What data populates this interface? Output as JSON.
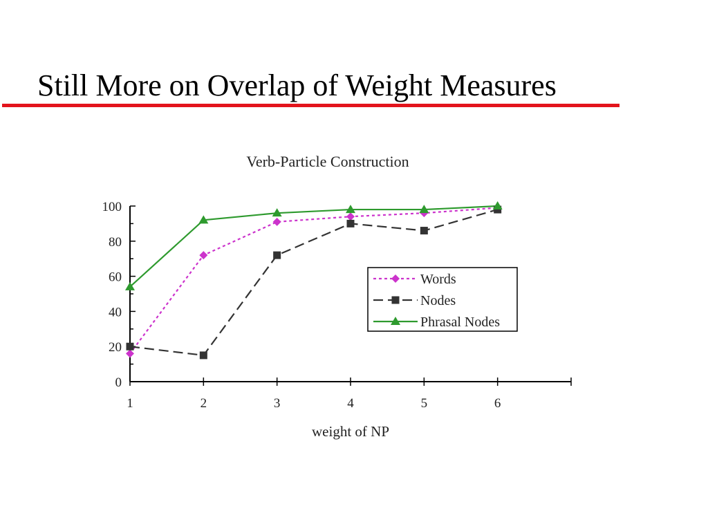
{
  "slide": {
    "title": "Still More on Overlap of Weight Measures",
    "rule_color": "#e3141c"
  },
  "chart_data": {
    "type": "line",
    "title": "Verb-Particle Construction",
    "xlabel": "weight of NP",
    "ylabel": "",
    "x": [
      1,
      2,
      3,
      4,
      5,
      6
    ],
    "xlim": [
      1,
      7
    ],
    "ylim": [
      0,
      100
    ],
    "xticks": [
      "1",
      "2",
      "3",
      "4",
      "5",
      "6"
    ],
    "yticks": [
      "0",
      "20",
      "40",
      "60",
      "80",
      "100"
    ],
    "grid": false,
    "legend_position": "center-right",
    "series": [
      {
        "name": "Words",
        "values": [
          16,
          72,
          91,
          94,
          96,
          99
        ],
        "color": "#cc33cc",
        "marker": "diamond",
        "line_style": "dotted"
      },
      {
        "name": "Nodes",
        "values": [
          20,
          15,
          72,
          90,
          86,
          98
        ],
        "color": "#333333",
        "marker": "square",
        "line_style": "dashed"
      },
      {
        "name": "Phrasal Nodes",
        "values": [
          54,
          92,
          96,
          98,
          98,
          100
        ],
        "color": "#2e9a2e",
        "marker": "triangle",
        "line_style": "solid"
      }
    ]
  }
}
